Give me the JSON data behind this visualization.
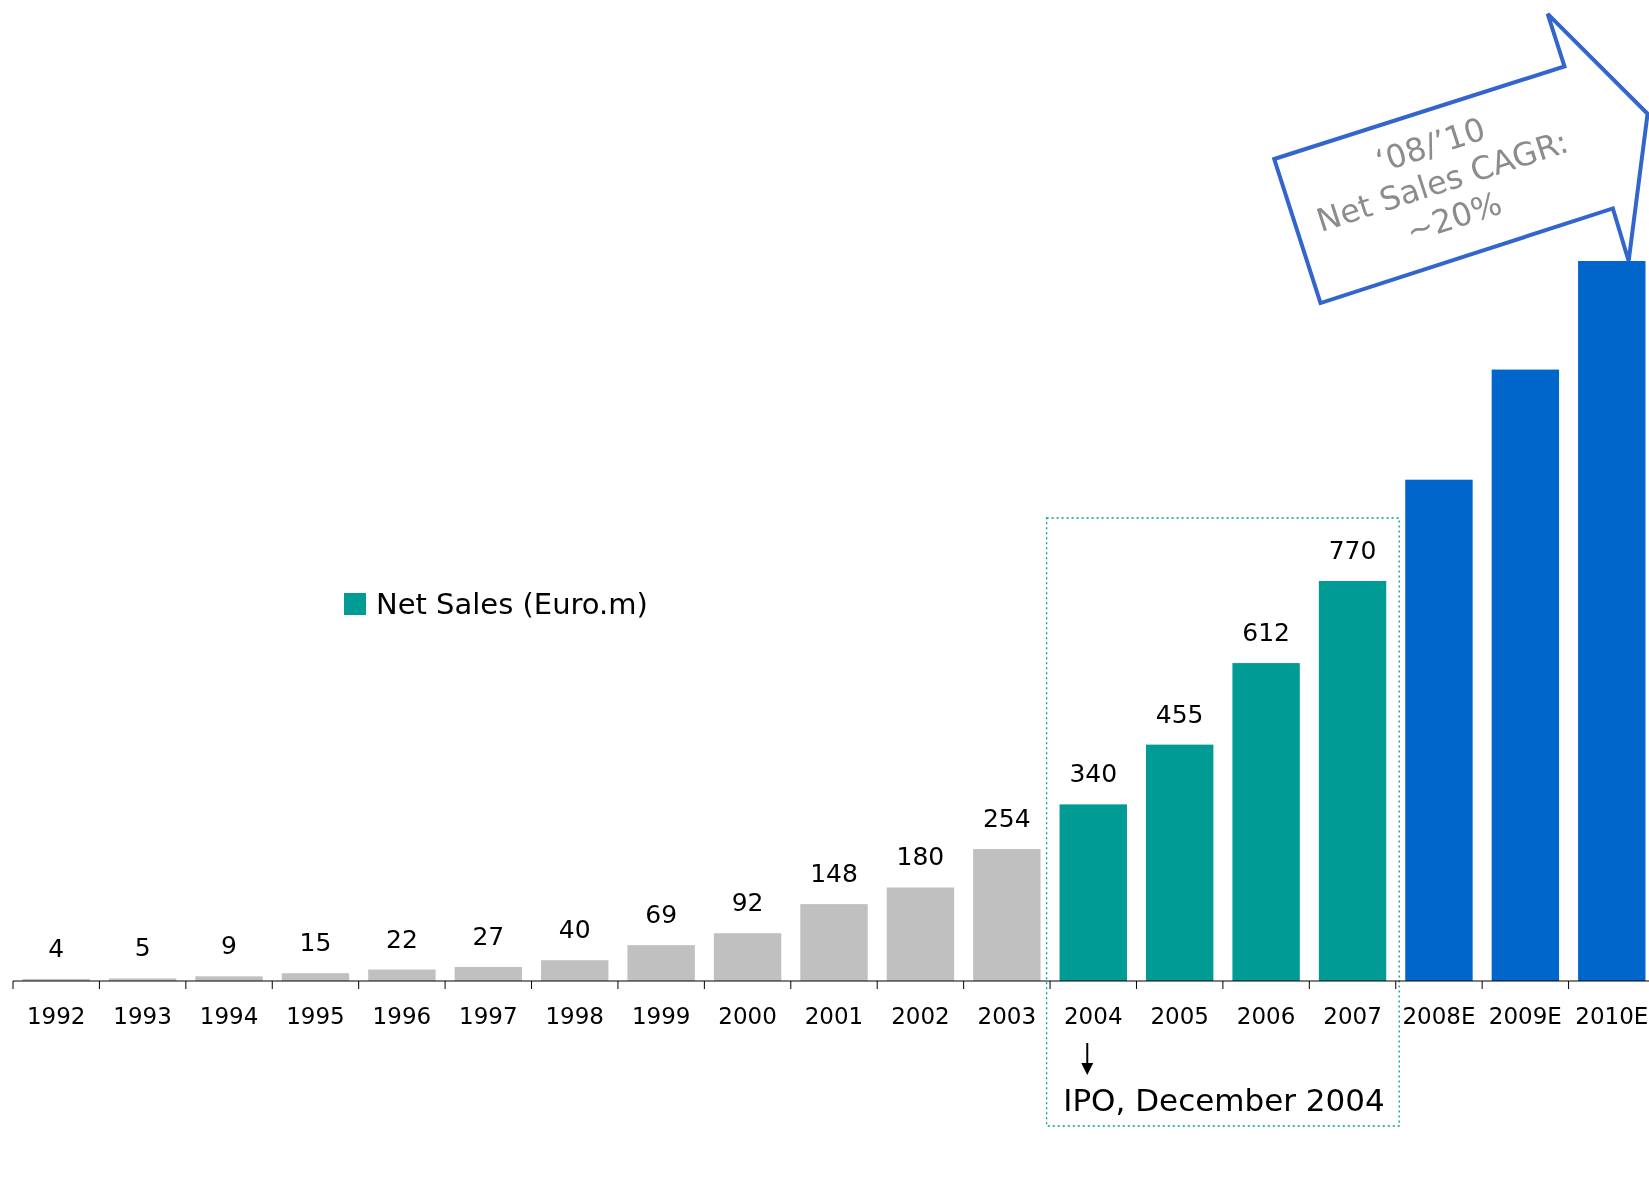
{
  "chart_data": {
    "type": "bar",
    "categories": [
      "1992",
      "1993",
      "1994",
      "1995",
      "1996",
      "1997",
      "1998",
      "1999",
      "2000",
      "2001",
      "2002",
      "2003",
      "2004",
      "2005",
      "2006",
      "2007",
      "2008E",
      "2009E",
      "2010E"
    ],
    "series": [
      {
        "color": "#c0c0c0",
        "values": [
          4,
          5,
          9,
          15,
          22,
          27,
          40,
          69,
          92,
          148,
          180,
          254,
          null,
          null,
          null,
          null,
          null,
          null,
          null
        ],
        "value_labels": [
          "4",
          "5",
          "9",
          "15",
          "22",
          "27",
          "40",
          "69",
          "92",
          "148",
          "180",
          "254",
          null,
          null,
          null,
          null,
          null,
          null,
          null
        ]
      },
      {
        "name": "Net Sales (Euro.m)",
        "color": "#009b95",
        "values": [
          null,
          null,
          null,
          null,
          null,
          null,
          null,
          null,
          null,
          null,
          null,
          null,
          340,
          455,
          612,
          770,
          null,
          null,
          null
        ],
        "value_labels": [
          null,
          null,
          null,
          null,
          null,
          null,
          null,
          null,
          null,
          null,
          null,
          null,
          "340",
          "455",
          "612",
          "770",
          null,
          null,
          null
        ]
      },
      {
        "color": "#0066cc",
        "values": [
          null,
          null,
          null,
          null,
          null,
          null,
          null,
          null,
          null,
          null,
          null,
          null,
          null,
          null,
          null,
          null,
          965,
          1177,
          1386
        ]
      }
    ],
    "annotations": [
      "‘08/’10\nNet Sales CAGR:\n~20%",
      "IPO, December 2004"
    ],
    "legend": "left"
  }
}
